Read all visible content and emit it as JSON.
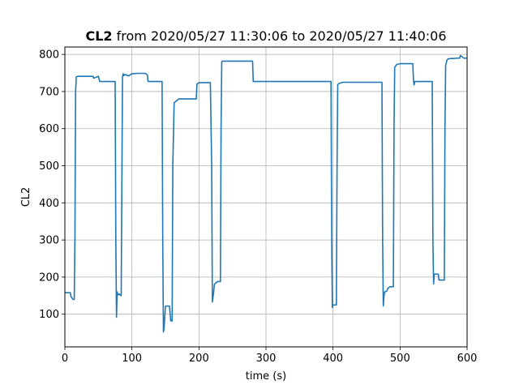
{
  "chart_data": {
    "type": "line",
    "title_bold": "CL2",
    "title_rest": " from 2020/05/27 11:30:06 to 2020/05/27 11:40:06",
    "xlabel": "time (s)",
    "ylabel": "CL2",
    "xlim": [
      0,
      600
    ],
    "ylim": [
      12,
      820
    ],
    "xticks": [
      0,
      100,
      200,
      300,
      400,
      500,
      600
    ],
    "yticks": [
      100,
      200,
      300,
      400,
      500,
      600,
      700,
      800
    ],
    "grid": true,
    "series": [
      {
        "color": "#1f77b4",
        "x": [
          0,
          8,
          9,
          12,
          14,
          15,
          16,
          17,
          20,
          30,
          40,
          42,
          43,
          50,
          52,
          60,
          70,
          74,
          75,
          76,
          77,
          78,
          79,
          81,
          82,
          84,
          86,
          87,
          88,
          90,
          95,
          100,
          110,
          120,
          123,
          124,
          125,
          130,
          140,
          145,
          146,
          147,
          148,
          150,
          152,
          156,
          158,
          160,
          161,
          163,
          170,
          180,
          190,
          196,
          197,
          200,
          210,
          216,
          217,
          219,
          220,
          222,
          223,
          226,
          228,
          232,
          233,
          234,
          235,
          240,
          250,
          270,
          280,
          281,
          290,
          300,
          320,
          340,
          360,
          380,
          397,
          398,
          399,
          400,
          402,
          405,
          406,
          407,
          409,
          415,
          420,
          440,
          460,
          473,
          474,
          475,
          476,
          477,
          480,
          482,
          485,
          488,
          490,
          491,
          492,
          495,
          500,
          510,
          519,
          520,
          521,
          522,
          525,
          530,
          540,
          548,
          549,
          550,
          551,
          555,
          557,
          558,
          562,
          566,
          567,
          568,
          570,
          572,
          575,
          580,
          585,
          589,
          590,
          595,
          600
        ],
        "y": [
          158,
          158,
          148,
          140,
          140,
          300,
          700,
          740,
          741,
          741,
          741,
          741,
          736,
          741,
          727,
          727,
          727,
          727,
          727,
          300,
          92,
          160,
          152,
          155,
          152,
          150,
          740,
          748,
          743,
          746,
          742,
          748,
          749,
          749,
          745,
          728,
          727,
          727,
          727,
          727,
          300,
          52,
          62,
          122,
          122,
          122,
          82,
          82,
          500,
          670,
          680,
          680,
          680,
          680,
          720,
          724,
          724,
          724,
          724,
          500,
          133,
          160,
          180,
          186,
          188,
          188,
          600,
          780,
          782,
          782,
          782,
          782,
          782,
          727,
          727,
          727,
          727,
          727,
          727,
          727,
          727,
          300,
          118,
          125,
          125,
          125,
          500,
          718,
          722,
          725,
          725,
          725,
          725,
          725,
          300,
          122,
          148,
          160,
          162,
          170,
          174,
          174,
          174,
          600,
          765,
          773,
          775,
          775,
          775,
          730,
          718,
          727,
          727,
          727,
          727,
          727,
          300,
          182,
          208,
          208,
          208,
          192,
          192,
          192,
          600,
          770,
          785,
          788,
          789,
          789,
          790,
          790,
          797,
          790,
          790
        ]
      }
    ]
  }
}
